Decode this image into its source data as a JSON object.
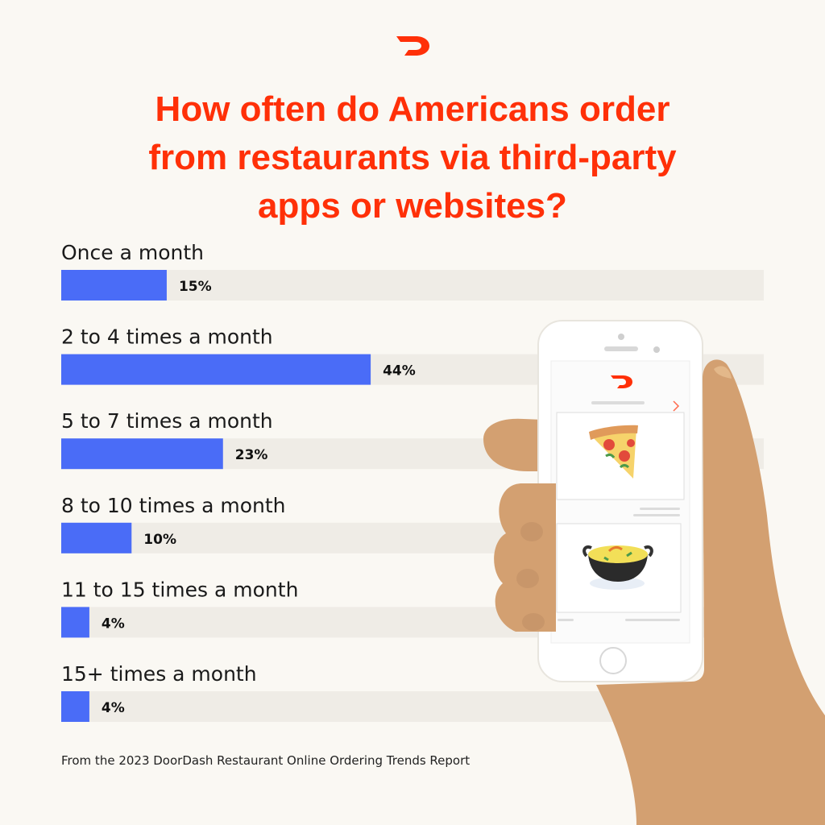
{
  "brand": {
    "name": "DoorDash",
    "accent": "#ff3008",
    "bar_color": "#4a6cf7",
    "track_color": "#efece6",
    "logo_icon": "doordash-logo-icon"
  },
  "title_lines": [
    "How often do Americans order",
    "from restaurants via third-party",
    "apps or websites?"
  ],
  "chart_data": {
    "type": "bar",
    "orientation": "horizontal",
    "title": "How often do Americans order from restaurants via third-party apps or websites?",
    "categories": [
      "Once a month",
      "2 to 4 times a month",
      "5 to 7 times a month",
      "8 to 10 times a month",
      "11 to 15 times a month",
      "15+ times a month"
    ],
    "values": [
      15,
      44,
      23,
      10,
      4,
      4
    ],
    "value_labels": [
      "15%",
      "44%",
      "23%",
      "10%",
      "4%",
      "4%"
    ],
    "unit": "%",
    "xlim": [
      0,
      100
    ],
    "grid": false,
    "legend": "none"
  },
  "illustration": {
    "icons": [
      "hand-icon",
      "phone-icon",
      "pizza-slice-icon",
      "curry-bowl-icon"
    ]
  },
  "source": "From the 2023 DoorDash Restaurant Online Ordering Trends Report"
}
